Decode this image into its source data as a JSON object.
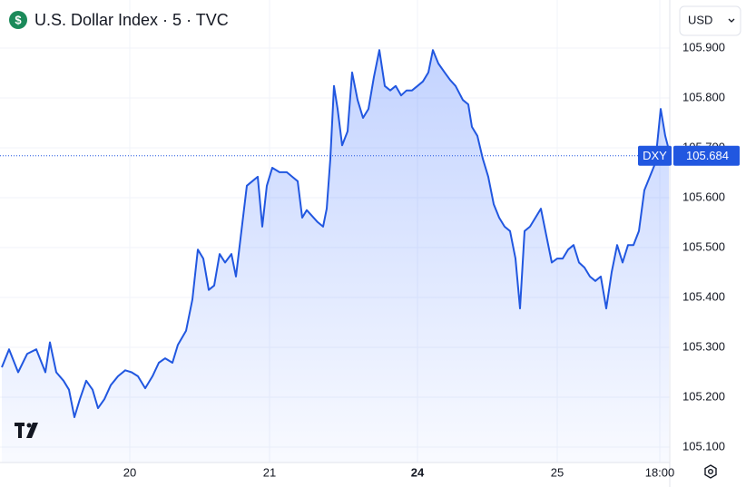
{
  "chart_data": {
    "type": "area-line",
    "title": "U.S. Dollar Index · 5 · TVC",
    "currency": "USD",
    "x": [
      2,
      10,
      20,
      30,
      40,
      50,
      55,
      62,
      70,
      76,
      82,
      88,
      95,
      102,
      108,
      115,
      122,
      130,
      138,
      145,
      152,
      160,
      168,
      175,
      182,
      190,
      196,
      205,
      212,
      218,
      224,
      230,
      236,
      242,
      248,
      255,
      260,
      266,
      272,
      278,
      284,
      289,
      294,
      300,
      308,
      316,
      322,
      328,
      333,
      338,
      344,
      350,
      356,
      360,
      364,
      368,
      372,
      377,
      383,
      388,
      394,
      400,
      406,
      412,
      418,
      424,
      430,
      436,
      442,
      448,
      454,
      460,
      466,
      472,
      477,
      483,
      490,
      496,
      502,
      510,
      516,
      520,
      526,
      532,
      538,
      544,
      550,
      556,
      562,
      568,
      573,
      578,
      584,
      590,
      596,
      602,
      608,
      614,
      620,
      626,
      632,
      638,
      644,
      650,
      656,
      662,
      668,
      674,
      680,
      686,
      692,
      698,
      704,
      710,
      716,
      722,
      728,
      733,
      737
    ],
    "series": [
      {
        "name": "DXY",
        "color": "#2157e0",
        "values": [
          105.26,
          105.296,
          105.25,
          105.287,
          105.296,
          105.25,
          105.31,
          105.25,
          105.233,
          105.215,
          105.16,
          105.196,
          105.233,
          105.215,
          105.178,
          105.196,
          105.224,
          105.242,
          105.254,
          105.25,
          105.242,
          105.218,
          105.242,
          105.269,
          105.278,
          105.269,
          105.305,
          105.333,
          105.396,
          105.496,
          105.478,
          105.415,
          105.424,
          105.487,
          105.47,
          105.487,
          105.442,
          105.533,
          105.624,
          105.633,
          105.642,
          105.542,
          105.624,
          105.66,
          105.651,
          105.651,
          105.642,
          105.633,
          105.56,
          105.575,
          105.563,
          105.551,
          105.542,
          105.578,
          105.678,
          105.824,
          105.778,
          105.705,
          105.733,
          105.851,
          105.796,
          105.76,
          105.778,
          105.842,
          105.896,
          105.824,
          105.815,
          105.824,
          105.805,
          105.815,
          105.815,
          105.824,
          105.833,
          105.851,
          105.896,
          105.869,
          105.851,
          105.836,
          105.824,
          105.796,
          105.787,
          105.742,
          105.724,
          105.678,
          105.642,
          105.587,
          105.56,
          105.542,
          105.533,
          105.478,
          105.378,
          105.533,
          105.542,
          105.56,
          105.578,
          105.524,
          105.47,
          105.478,
          105.478,
          105.496,
          105.505,
          105.47,
          105.46,
          105.442,
          105.433,
          105.442,
          105.378,
          105.451,
          105.505,
          105.47,
          105.505,
          105.505,
          105.533,
          105.615,
          105.642,
          105.669,
          105.778,
          105.724,
          105.696
        ]
      }
    ],
    "xlim": [
      0,
      738
    ],
    "xticks": [
      {
        "value": 143,
        "label": "20"
      },
      {
        "value": 297,
        "label": "21"
      },
      {
        "value": 460,
        "label": "24"
      },
      {
        "value": 614,
        "label": "25"
      },
      {
        "value": 727,
        "label": "18:00"
      }
    ],
    "ylim": [
      105.07,
      105.99
    ],
    "yticks": [
      {
        "value": 105.1,
        "label": "105.100"
      },
      {
        "value": 105.2,
        "label": "105.200"
      },
      {
        "value": 105.3,
        "label": "105.300"
      },
      {
        "value": 105.4,
        "label": "105.400"
      },
      {
        "value": 105.5,
        "label": "105.500"
      },
      {
        "value": 105.6,
        "label": "105.600"
      },
      {
        "value": 105.7,
        "label": "105.700"
      },
      {
        "value": 105.8,
        "label": "105.800"
      },
      {
        "value": 105.9,
        "label": "105.900"
      }
    ],
    "price_line": {
      "symbol": "DXY",
      "value": 105.684
    },
    "grid": true
  }
}
